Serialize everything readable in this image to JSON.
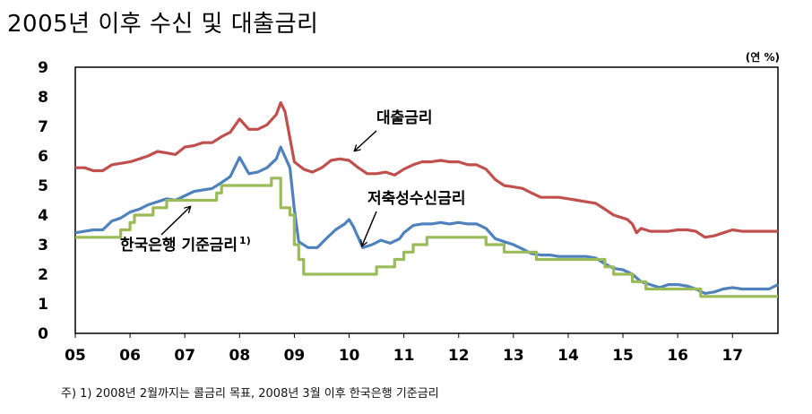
{
  "title": "2005년 이후 수신 및 대출금리",
  "unit_label": "(연 %)",
  "footnote": "주) 1) 2008년 2월까지는 콜금리 목표, 2008년 3월 이후 한국은행 기준금리",
  "chart_data": {
    "type": "line",
    "xlim": [
      2005.0,
      2017.83
    ],
    "ylim": [
      0,
      9
    ],
    "x_ticks": [
      {
        "label": "05",
        "value": 2005
      },
      {
        "label": "06",
        "value": 2006
      },
      {
        "label": "07",
        "value": 2007
      },
      {
        "label": "08",
        "value": 2008
      },
      {
        "label": "09",
        "value": 2009
      },
      {
        "label": "10",
        "value": 2010
      },
      {
        "label": "11",
        "value": 2011
      },
      {
        "label": "12",
        "value": 2012
      },
      {
        "label": "13",
        "value": 2013
      },
      {
        "label": "14",
        "value": 2014
      },
      {
        "label": "15",
        "value": 2015
      },
      {
        "label": "16",
        "value": 2016
      },
      {
        "label": "17",
        "value": 2017
      }
    ],
    "y_ticks": [
      "0",
      "1",
      "2",
      "3",
      "4",
      "5",
      "6",
      "7",
      "8",
      "9"
    ],
    "grid": false,
    "annotations": [
      {
        "text": "대출금리",
        "series": "lending"
      },
      {
        "text": "저축성수신금리",
        "series": "deposit"
      },
      {
        "text": "한국은행 기준금리",
        "superscript": "1)",
        "series": "base"
      }
    ],
    "series": [
      {
        "key": "lending",
        "color": "#c0504d",
        "points": [
          [
            2005.0,
            5.6
          ],
          [
            2005.17,
            5.6
          ],
          [
            2005.33,
            5.5
          ],
          [
            2005.5,
            5.5
          ],
          [
            2005.67,
            5.7
          ],
          [
            2005.83,
            5.75
          ],
          [
            2006.0,
            5.8
          ],
          [
            2006.17,
            5.9
          ],
          [
            2006.33,
            6.0
          ],
          [
            2006.5,
            6.15
          ],
          [
            2006.67,
            6.1
          ],
          [
            2006.83,
            6.05
          ],
          [
            2007.0,
            6.3
          ],
          [
            2007.17,
            6.35
          ],
          [
            2007.33,
            6.45
          ],
          [
            2007.5,
            6.45
          ],
          [
            2007.67,
            6.65
          ],
          [
            2007.83,
            6.8
          ],
          [
            2008.0,
            7.25
          ],
          [
            2008.17,
            6.9
          ],
          [
            2008.33,
            6.9
          ],
          [
            2008.5,
            7.05
          ],
          [
            2008.67,
            7.4
          ],
          [
            2008.75,
            7.8
          ],
          [
            2008.83,
            7.5
          ],
          [
            2009.0,
            5.8
          ],
          [
            2009.17,
            5.55
          ],
          [
            2009.33,
            5.45
          ],
          [
            2009.5,
            5.6
          ],
          [
            2009.67,
            5.85
          ],
          [
            2009.83,
            5.9
          ],
          [
            2010.0,
            5.85
          ],
          [
            2010.17,
            5.6
          ],
          [
            2010.33,
            5.4
          ],
          [
            2010.5,
            5.4
          ],
          [
            2010.67,
            5.45
          ],
          [
            2010.83,
            5.35
          ],
          [
            2011.0,
            5.55
          ],
          [
            2011.17,
            5.7
          ],
          [
            2011.33,
            5.8
          ],
          [
            2011.5,
            5.8
          ],
          [
            2011.67,
            5.85
          ],
          [
            2011.83,
            5.8
          ],
          [
            2012.0,
            5.8
          ],
          [
            2012.17,
            5.7
          ],
          [
            2012.33,
            5.7
          ],
          [
            2012.5,
            5.55
          ],
          [
            2012.67,
            5.2
          ],
          [
            2012.83,
            5.0
          ],
          [
            2013.0,
            4.95
          ],
          [
            2013.17,
            4.9
          ],
          [
            2013.33,
            4.75
          ],
          [
            2013.5,
            4.6
          ],
          [
            2013.67,
            4.6
          ],
          [
            2013.83,
            4.6
          ],
          [
            2014.0,
            4.55
          ],
          [
            2014.17,
            4.5
          ],
          [
            2014.33,
            4.45
          ],
          [
            2014.5,
            4.4
          ],
          [
            2014.67,
            4.2
          ],
          [
            2014.83,
            4.0
          ],
          [
            2015.0,
            3.9
          ],
          [
            2015.08,
            3.85
          ],
          [
            2015.17,
            3.7
          ],
          [
            2015.25,
            3.4
          ],
          [
            2015.33,
            3.55
          ],
          [
            2015.5,
            3.45
          ],
          [
            2015.67,
            3.45
          ],
          [
            2015.83,
            3.45
          ],
          [
            2016.0,
            3.5
          ],
          [
            2016.17,
            3.5
          ],
          [
            2016.33,
            3.45
          ],
          [
            2016.5,
            3.25
          ],
          [
            2016.67,
            3.3
          ],
          [
            2016.83,
            3.4
          ],
          [
            2017.0,
            3.5
          ],
          [
            2017.17,
            3.45
          ],
          [
            2017.33,
            3.45
          ],
          [
            2017.5,
            3.45
          ],
          [
            2017.67,
            3.45
          ],
          [
            2017.83,
            3.45
          ]
        ]
      },
      {
        "key": "deposit",
        "color": "#4f81bd",
        "points": [
          [
            2005.0,
            3.4
          ],
          [
            2005.17,
            3.45
          ],
          [
            2005.33,
            3.5
          ],
          [
            2005.5,
            3.5
          ],
          [
            2005.67,
            3.8
          ],
          [
            2005.83,
            3.9
          ],
          [
            2006.0,
            4.1
          ],
          [
            2006.17,
            4.2
          ],
          [
            2006.33,
            4.35
          ],
          [
            2006.5,
            4.45
          ],
          [
            2006.67,
            4.55
          ],
          [
            2006.83,
            4.5
          ],
          [
            2007.0,
            4.65
          ],
          [
            2007.17,
            4.8
          ],
          [
            2007.33,
            4.85
          ],
          [
            2007.5,
            4.9
          ],
          [
            2007.67,
            5.1
          ],
          [
            2007.83,
            5.3
          ],
          [
            2008.0,
            5.95
          ],
          [
            2008.17,
            5.4
          ],
          [
            2008.33,
            5.45
          ],
          [
            2008.5,
            5.6
          ],
          [
            2008.67,
            5.9
          ],
          [
            2008.75,
            6.3
          ],
          [
            2008.92,
            5.6
          ],
          [
            2009.0,
            4.2
          ],
          [
            2009.08,
            3.1
          ],
          [
            2009.25,
            2.9
          ],
          [
            2009.42,
            2.9
          ],
          [
            2009.58,
            3.2
          ],
          [
            2009.75,
            3.5
          ],
          [
            2009.92,
            3.7
          ],
          [
            2010.0,
            3.85
          ],
          [
            2010.08,
            3.6
          ],
          [
            2010.25,
            2.9
          ],
          [
            2010.42,
            3.0
          ],
          [
            2010.58,
            3.15
          ],
          [
            2010.75,
            3.05
          ],
          [
            2010.92,
            3.2
          ],
          [
            2011.0,
            3.4
          ],
          [
            2011.17,
            3.65
          ],
          [
            2011.33,
            3.7
          ],
          [
            2011.5,
            3.7
          ],
          [
            2011.67,
            3.75
          ],
          [
            2011.83,
            3.7
          ],
          [
            2012.0,
            3.75
          ],
          [
            2012.17,
            3.7
          ],
          [
            2012.33,
            3.7
          ],
          [
            2012.5,
            3.55
          ],
          [
            2012.67,
            3.2
          ],
          [
            2012.83,
            3.1
          ],
          [
            2013.0,
            3.0
          ],
          [
            2013.17,
            2.85
          ],
          [
            2013.33,
            2.7
          ],
          [
            2013.5,
            2.65
          ],
          [
            2013.67,
            2.65
          ],
          [
            2013.83,
            2.6
          ],
          [
            2014.0,
            2.6
          ],
          [
            2014.17,
            2.6
          ],
          [
            2014.33,
            2.6
          ],
          [
            2014.5,
            2.55
          ],
          [
            2014.67,
            2.35
          ],
          [
            2014.83,
            2.2
          ],
          [
            2015.0,
            2.15
          ],
          [
            2015.17,
            2.0
          ],
          [
            2015.33,
            1.75
          ],
          [
            2015.5,
            1.65
          ],
          [
            2015.67,
            1.55
          ],
          [
            2015.83,
            1.65
          ],
          [
            2016.0,
            1.65
          ],
          [
            2016.17,
            1.6
          ],
          [
            2016.33,
            1.5
          ],
          [
            2016.5,
            1.35
          ],
          [
            2016.67,
            1.4
          ],
          [
            2016.83,
            1.5
          ],
          [
            2017.0,
            1.55
          ],
          [
            2017.17,
            1.5
          ],
          [
            2017.33,
            1.5
          ],
          [
            2017.5,
            1.5
          ],
          [
            2017.67,
            1.5
          ],
          [
            2017.83,
            1.65
          ]
        ]
      },
      {
        "key": "base",
        "color": "#9bbb59",
        "step": true,
        "points": [
          [
            2005.0,
            3.25
          ],
          [
            2005.67,
            3.25
          ],
          [
            2005.83,
            3.5
          ],
          [
            2006.0,
            3.75
          ],
          [
            2006.08,
            4.0
          ],
          [
            2006.42,
            4.25
          ],
          [
            2006.67,
            4.5
          ],
          [
            2007.58,
            4.75
          ],
          [
            2007.67,
            5.0
          ],
          [
            2008.58,
            5.25
          ],
          [
            2008.75,
            4.25
          ],
          [
            2008.92,
            4.0
          ],
          [
            2009.0,
            3.0
          ],
          [
            2009.08,
            2.5
          ],
          [
            2009.17,
            2.0
          ],
          [
            2010.5,
            2.25
          ],
          [
            2010.83,
            2.5
          ],
          [
            2011.0,
            2.75
          ],
          [
            2011.17,
            3.0
          ],
          [
            2011.42,
            3.25
          ],
          [
            2012.5,
            3.0
          ],
          [
            2012.83,
            2.75
          ],
          [
            2013.42,
            2.5
          ],
          [
            2014.67,
            2.25
          ],
          [
            2014.83,
            2.0
          ],
          [
            2015.17,
            1.75
          ],
          [
            2015.42,
            1.5
          ],
          [
            2016.42,
            1.25
          ],
          [
            2017.83,
            1.25
          ]
        ]
      }
    ]
  }
}
